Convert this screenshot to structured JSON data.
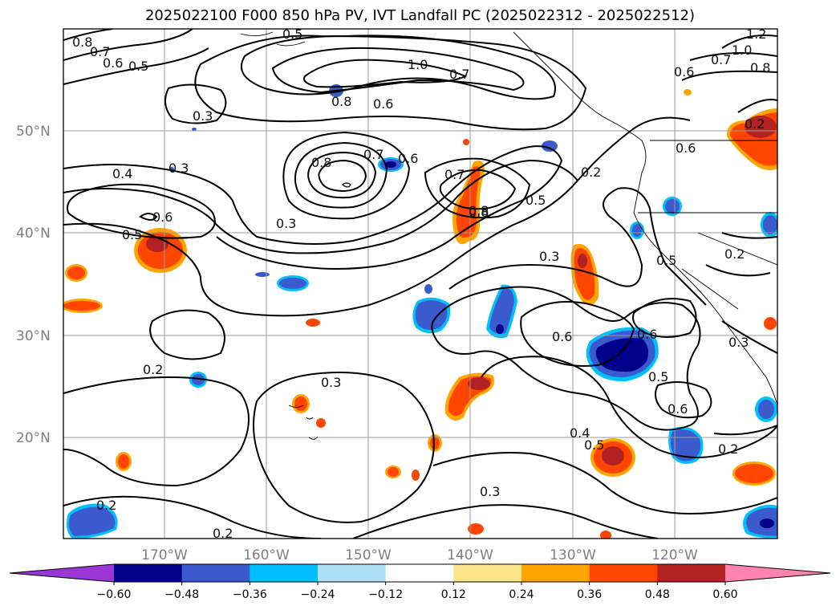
{
  "title": "2025022100 F000 850 hPa PV, IVT Landfall PC (2025022312 - 2025022512)",
  "lat_labels": [
    "50°N",
    "40°N",
    "30°N",
    "20°N"
  ],
  "lon_labels": [
    "170°W",
    "160°W",
    "150°W",
    "140°W",
    "130°W",
    "120°W"
  ],
  "colorbar": {
    "tick_labels": [
      "−0.60",
      "−0.48",
      "−0.36",
      "−0.24",
      "−0.12",
      "0.12",
      "0.24",
      "0.36",
      "0.48",
      "0.60"
    ],
    "colors": [
      "#9a35d6",
      "#00008b",
      "#3a5acd",
      "#00bfff",
      "#ade0f7",
      "#ffffff",
      "#fde68a",
      "#ffa500",
      "#ff4500",
      "#b22222",
      "#ff85b0"
    ]
  },
  "contour_labels": [
    "0.8",
    "0.7",
    "0.6",
    "0.5",
    "0.5",
    "1.0",
    "0.7",
    "0.8",
    "0.6",
    "0.3",
    "0.3",
    "0.8",
    "0.7",
    "0.6",
    "0.7",
    "0.8",
    "0.4",
    "0.6",
    "0.5",
    "0.5",
    "0.3",
    "0.2",
    "0.3",
    "0.3",
    "0.8",
    "0.6",
    "0.5",
    "0.2",
    "0.5",
    "0.2",
    "0.6",
    "0.6",
    "0.6",
    "0.5",
    "0.3",
    "0.4",
    "0.2",
    "0.3",
    "0.2",
    "0.2",
    "0.2",
    "0.7",
    "0.8",
    "1.0",
    "1.2",
    "0.6"
  ]
}
